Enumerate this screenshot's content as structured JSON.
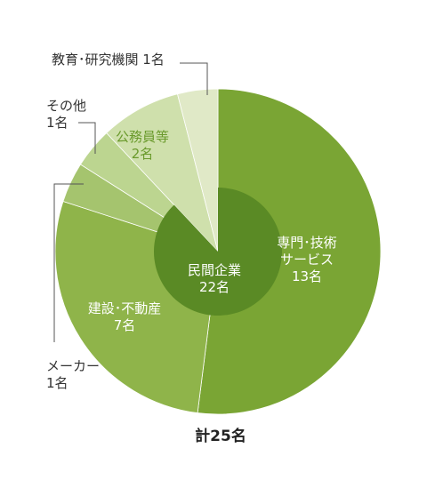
{
  "chart_data": {
    "type": "pie",
    "total_label": "計25名",
    "slices": [
      {
        "name": "専門・技術サービス",
        "label_lines": [
          "専門･技術",
          "サービス"
        ],
        "value": 13,
        "value_label": "13名",
        "color": "#7aa534"
      },
      {
        "name": "建設・不動産",
        "label_lines": [
          "建設･不動産"
        ],
        "value": 7,
        "value_label": "7名",
        "color": "#8fb44a"
      },
      {
        "name": "メーカー",
        "label_lines": [
          "メーカー"
        ],
        "value": 1,
        "value_label": "1名",
        "color": "#a5c46e"
      },
      {
        "name": "その他",
        "label_lines": [
          "その他"
        ],
        "value": 1,
        "value_label": "1名",
        "color": "#bcd590"
      },
      {
        "name": "公務員等",
        "label_lines": [
          "公務員等"
        ],
        "value": 2,
        "value_label": "2名",
        "color": "#cfe0ac"
      },
      {
        "name": "教育・研究機関",
        "label_lines": [
          "教育･研究機関"
        ],
        "value": 1,
        "value_label": "1名",
        "color": "#e0e9c7"
      }
    ],
    "inner": {
      "name": "民間企業",
      "label_lines": [
        "民間企業"
      ],
      "value": 22,
      "value_label": "22名",
      "color": "#5a8a25"
    }
  }
}
